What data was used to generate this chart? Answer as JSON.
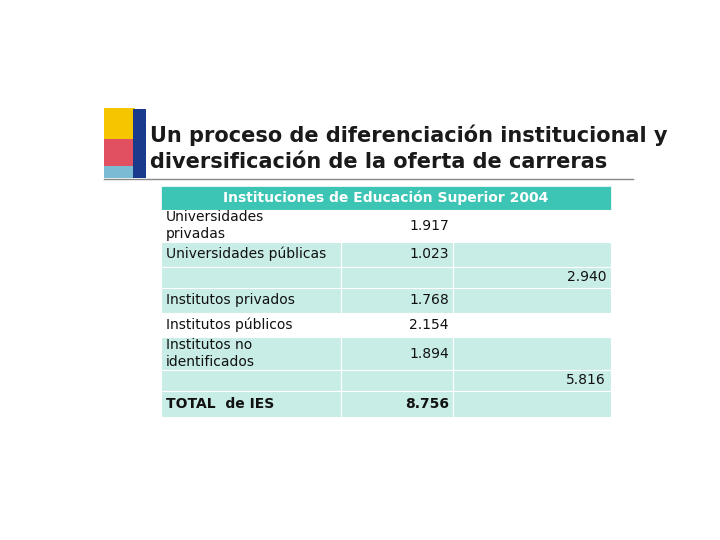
{
  "title_line1": "Un proceso de diferenciación institucional y",
  "title_line2": "diversificación de la oferta de carreras",
  "header": "Instituciones de Educación Superior 2004",
  "header_bg": "#3CC4B4",
  "header_text_color": "#ffffff",
  "rows": [
    {
      "col1": "Universidades\nprivadas",
      "col2": "1.917",
      "col3": ""
    },
    {
      "col1": "Universidades públicas",
      "col2": "1.023",
      "col3": ""
    },
    {
      "col1": "",
      "col2": "",
      "col3": "2.940"
    },
    {
      "col1": "Institutos privados",
      "col2": "1.768",
      "col3": ""
    },
    {
      "col1": "Institutos públicos",
      "col2": "2.154",
      "col3": ""
    },
    {
      "col1": "Institutos no\nidentificados",
      "col2": "1.894",
      "col3": ""
    },
    {
      "col1": "",
      "col2": "",
      "col3": "5.816"
    },
    {
      "col1": "TOTAL  de IES",
      "col2": "8.756",
      "col3": ""
    }
  ],
  "bold_rows": [
    7
  ],
  "cell_bg_light": "#C8EDE6",
  "cell_bg_white": "#FFFFFF",
  "subtotal_rows": [
    2,
    6
  ],
  "background_color": "#FFFFFF",
  "title_color": "#1A1A1A",
  "title_fontsize": 15,
  "table_fontsize": 10,
  "deco_yellow": "#F5C500",
  "deco_red": "#E05060",
  "deco_blue": "#1A3B8C",
  "deco_lightblue": "#7BBBD4",
  "line_color": "#888888"
}
